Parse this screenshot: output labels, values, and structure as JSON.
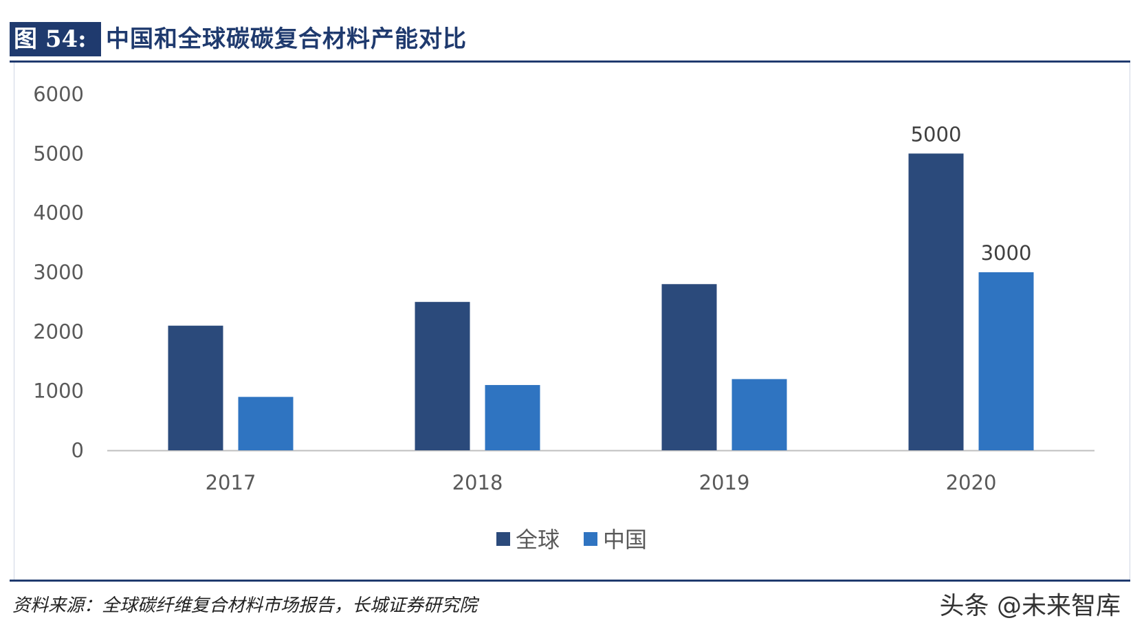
{
  "figure": {
    "label": "图 54:",
    "title": "中国和全球碳碳复合材料产能对比"
  },
  "source_note": "资料来源：全球碳纤维复合材料市场报告，长城证券研究院",
  "watermark": "头条 @未来智库",
  "colors": {
    "header": "#1F3A6E",
    "global": "#2B4A7B",
    "china": "#2F74C1",
    "axis": "#BFBFBF"
  },
  "chart_data": {
    "type": "bar",
    "title": "",
    "xlabel": "",
    "ylabel": "",
    "categories": [
      "2017",
      "2018",
      "2019",
      "2020"
    ],
    "series": [
      {
        "name": "全球",
        "values": [
          2100,
          2500,
          2800,
          5000
        ]
      },
      {
        "name": "中国",
        "values": [
          900,
          1100,
          1200,
          3000
        ]
      }
    ],
    "ylim": [
      0,
      6000
    ],
    "yticks": [
      "0",
      "1000",
      "2000",
      "3000",
      "4000",
      "5000",
      "6000"
    ],
    "data_labels": {
      "2020": [
        "5000",
        "3000"
      ]
    },
    "grid": false,
    "legend": "bottom-center"
  }
}
